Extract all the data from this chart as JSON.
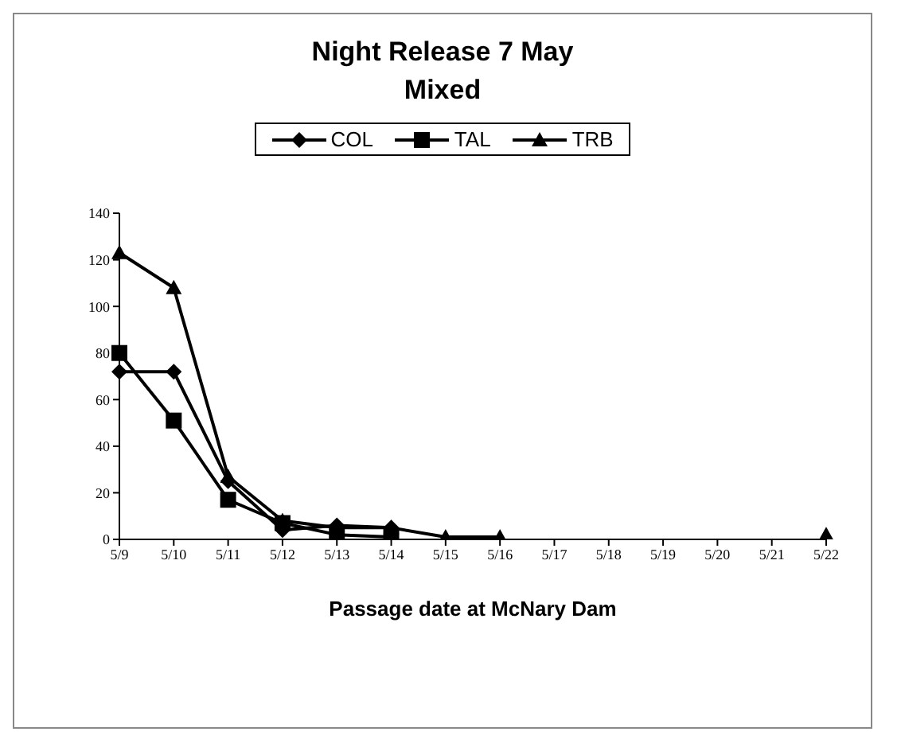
{
  "chart_data": {
    "type": "line",
    "title": "Night Release 7 May",
    "subtitle": "Mixed",
    "xlabel": "Passage date at McNary Dam",
    "categories": [
      "5/9",
      "5/10",
      "5/11",
      "5/12",
      "5/13",
      "5/14",
      "5/15",
      "5/16",
      "5/17",
      "5/18",
      "5/19",
      "5/20",
      "5/21",
      "5/22"
    ],
    "series": [
      {
        "name": "COL",
        "color": "#000000",
        "marker": "diamond",
        "values": [
          72,
          72,
          25,
          4,
          6,
          5,
          null,
          null,
          null,
          null,
          null,
          null,
          null,
          null
        ]
      },
      {
        "name": "TAL",
        "color": "#000000",
        "marker": "square",
        "values": [
          80,
          51,
          17,
          7,
          2,
          1,
          null,
          null,
          null,
          null,
          null,
          null,
          null,
          null
        ]
      },
      {
        "name": "TRB",
        "color": "#000000",
        "marker": "triangle",
        "values": [
          123,
          108,
          27,
          8,
          5,
          5,
          1,
          1,
          null,
          null,
          null,
          null,
          null,
          2
        ]
      }
    ],
    "ylim": [
      0,
      140
    ],
    "yticks": [
      0,
      20,
      40,
      60,
      80,
      100,
      120,
      140
    ],
    "grid": false,
    "legend": "top"
  }
}
